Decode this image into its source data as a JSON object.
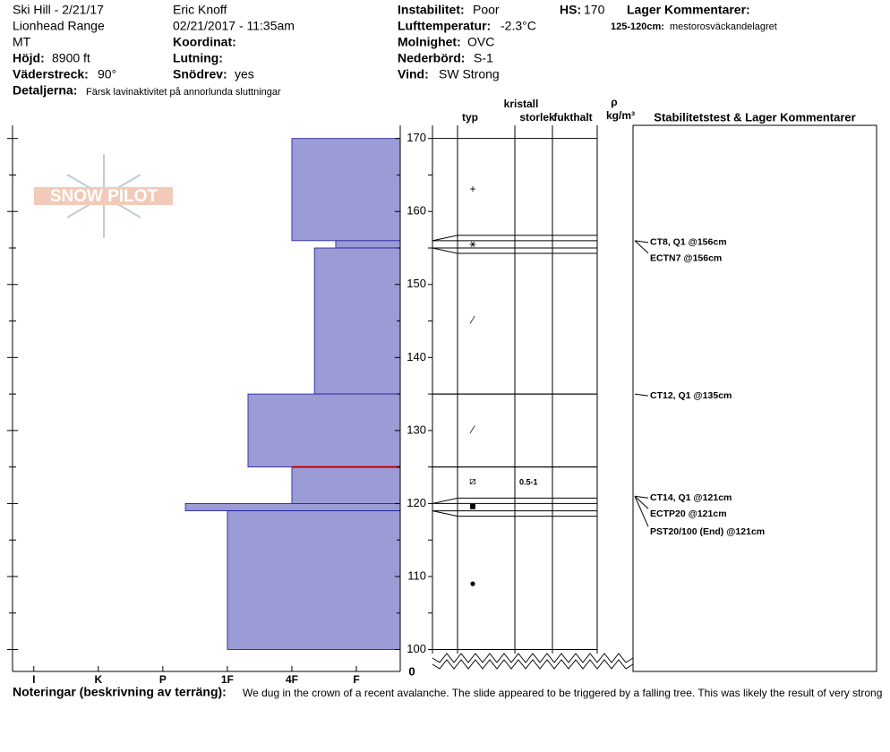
{
  "header": {
    "site": "Ski Hill - 2/21/17",
    "range": "Lionhead Range",
    "state": "MT",
    "elevation": {
      "label": "Höjd:",
      "value": "8900 ft"
    },
    "aspect": {
      "label": "Väderstreck:",
      "value": "90°"
    },
    "observer": "Eric Knoff",
    "datetime": "02/21/2017 - 11:35am",
    "coordinate": {
      "label": "Koordinat:"
    },
    "slope": {
      "label": "Lutning:"
    },
    "wind_loading": {
      "label": "Snödrev:",
      "value": "yes"
    },
    "instability": {
      "label": "Instabilitet:",
      "value": "Poor"
    },
    "air_temp": {
      "label": "Lufttemperatur:",
      "value": "-2.3°C"
    },
    "sky": {
      "label": "Molnighet:",
      "value": "OVC"
    },
    "precip": {
      "label": "Nederbörd:",
      "value": "S-1"
    },
    "wind": {
      "label": "Vind:",
      "value": "SW Strong"
    },
    "hs": {
      "label": "HS:",
      "value": "170"
    },
    "layer_comments": {
      "label": "Lager Kommentarer:",
      "range": "125-120cm:",
      "text": "mestorosväckandelagret"
    },
    "details": {
      "label": "Detaljerna:",
      "value": "Färsk lavinaktivitet på annorlunda sluttningar"
    },
    "logo": "SNOW PILOT"
  },
  "chart_data": {
    "type": "snow-profile",
    "ylim": [
      97,
      171.8
    ],
    "yticks": [
      100,
      110,
      120,
      130,
      140,
      150,
      160,
      170
    ],
    "minor_yticks": [
      105,
      115,
      125,
      135,
      145,
      155,
      165
    ],
    "ybreak_label": "0",
    "xlim": [
      0.32,
      6.33
    ],
    "xticks": [
      {
        "value": 6,
        "label": "I"
      },
      {
        "value": 5,
        "label": "K"
      },
      {
        "value": 4,
        "label": "P"
      },
      {
        "value": 3,
        "label": "1F"
      },
      {
        "value": 2,
        "label": "4F"
      },
      {
        "value": 1,
        "label": "F"
      }
    ],
    "color": "#9b9bd6",
    "layers": [
      {
        "top": 170,
        "bottom": 156,
        "hardness": 2
      },
      {
        "top": 156,
        "bottom": 155,
        "hardness": 1.32
      },
      {
        "top": 155,
        "bottom": 135,
        "hardness": 1.65
      },
      {
        "top": 135,
        "bottom": 125,
        "hardness": 2.68
      },
      {
        "top": 125,
        "bottom": 120,
        "hardness": 2
      },
      {
        "top": 120,
        "bottom": 119,
        "hardness": 3.65
      },
      {
        "top": 119,
        "bottom": 100,
        "hardness": 3
      }
    ],
    "concern_depth": 125,
    "columns": {
      "crystal": "kristall",
      "type": "typ",
      "size": "storlek",
      "moisture": "fukthalt",
      "rho": "ρ",
      "density": "kg/m³",
      "comments": "Stabilitetstest & Lager Kommentarer"
    },
    "grains": [
      {
        "depth": 163,
        "symbol": "+"
      },
      {
        "depth": 155.5,
        "symbol": "⚹"
      },
      {
        "depth": 145,
        "symbol": "⁄"
      },
      {
        "depth": 130,
        "symbol": "⁄"
      },
      {
        "depth": 123,
        "symbol": "⧄",
        "size": "0.5-1"
      },
      {
        "depth": 119.5,
        "symbol": "■"
      },
      {
        "depth": 109,
        "symbol": "●"
      }
    ],
    "tests": [
      {
        "depth": 156,
        "text": "CT8, Q1 @156cm"
      },
      {
        "depth": 156,
        "text": "ECTN7 @156cm"
      },
      {
        "depth": 135,
        "text": "CT12, Q1 @135cm"
      },
      {
        "depth": 121,
        "text": "CT14, Q1 @121cm"
      },
      {
        "depth": 121,
        "text": "ECTP20 @121cm"
      },
      {
        "depth": 121,
        "text": "PST20/100 (End) @121cm"
      }
    ]
  },
  "notes": {
    "label": "Noteringar (beskrivning av terräng):",
    "text": "We dug in the crown of a recent avalanche. The slide appeared to be triggered by a falling tree. This was likely the result of very strong"
  }
}
